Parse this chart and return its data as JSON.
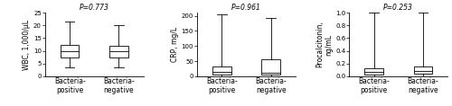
{
  "panels": [
    {
      "ylabel": "WBC, 1,000/μL",
      "pvalue": "P=0.773",
      "ylim": [
        0,
        25
      ],
      "yticks": [
        0,
        5,
        10,
        15,
        20,
        25
      ],
      "boxes": [
        {
          "whislo": 3.5,
          "q1": 7.5,
          "med": 10.0,
          "q3": 12.5,
          "whishi": 21.5
        },
        {
          "whislo": 3.5,
          "q1": 7.5,
          "med": 10.0,
          "q3": 12.0,
          "whishi": 20.0
        }
      ]
    },
    {
      "ylabel": "CRP, mg/L",
      "pvalue": "P=0.961",
      "ylim": [
        0,
        210
      ],
      "yticks": [
        0,
        50,
        100,
        150,
        200
      ],
      "boxes": [
        {
          "whislo": 0.0,
          "q1": 5.0,
          "med": 15.0,
          "q3": 32.0,
          "whishi": 205.0
        },
        {
          "whislo": 0.0,
          "q1": 5.0,
          "med": 12.0,
          "q3": 57.0,
          "whishi": 192.0
        }
      ]
    },
    {
      "ylabel": "Procalcitonin,\nng/mL",
      "pvalue": "P=0.253",
      "ylim": [
        0.0,
        1.0
      ],
      "yticks": [
        0.0,
        0.2,
        0.4,
        0.6,
        0.8,
        1.0
      ],
      "boxes": [
        {
          "whislo": 0.0,
          "q1": 0.03,
          "med": 0.07,
          "q3": 0.12,
          "whishi": 1.0
        },
        {
          "whislo": 0.0,
          "q1": 0.04,
          "med": 0.08,
          "q3": 0.15,
          "whishi": 1.0
        }
      ]
    }
  ],
  "xlabels": [
    "Bacteria-\npositive",
    "Bacteria-\nnegative"
  ],
  "box_color": "#ffffff",
  "median_color": "#000000",
  "whisker_color": "#000000",
  "cap_color": "#000000",
  "box_edge_color": "#000000",
  "pvalue_fontsize": 5.5,
  "ylabel_fontsize": 5.5,
  "xlabel_fontsize": 5.5,
  "tick_fontsize": 5.0,
  "box_width": 0.38,
  "linewidth": 0.6,
  "background_color": "#ffffff"
}
